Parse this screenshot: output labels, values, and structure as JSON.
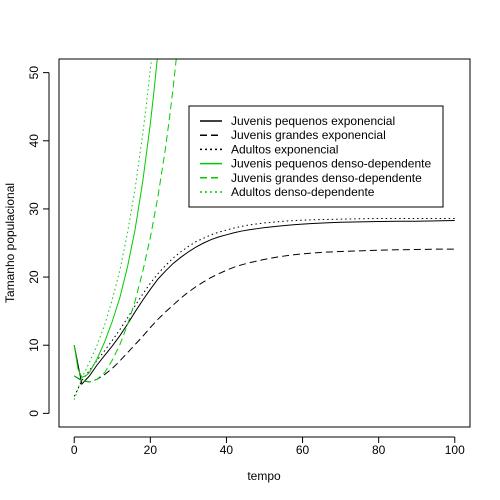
{
  "chart_data": {
    "type": "line",
    "title": "",
    "xlabel": "tempo",
    "ylabel": "Tamanho populacional",
    "xlim": [
      -4,
      104
    ],
    "ylim": [
      -2,
      52
    ],
    "x_ticks": [
      0,
      20,
      40,
      60,
      80,
      100
    ],
    "y_ticks": [
      0,
      10,
      20,
      30,
      40,
      50
    ],
    "grid": false,
    "legend_position": "top-right",
    "colors": {
      "black": "#000000",
      "green": "#00cc00"
    },
    "series": [
      {
        "name": "Juvenis pequenos exponencial",
        "color": "#000000",
        "dash": "solid",
        "x": [
          0,
          2,
          4,
          6,
          8,
          10,
          12,
          14,
          16,
          18,
          20,
          22,
          24,
          26,
          28,
          30,
          32,
          34,
          36,
          38,
          40,
          42,
          44,
          46,
          48,
          50,
          54,
          58,
          62,
          66,
          70,
          75,
          80,
          85,
          90,
          95,
          100
        ],
        "y": [
          10,
          4.3,
          5.5,
          7.1,
          8.5,
          9.9,
          11.4,
          13.1,
          14.9,
          16.6,
          18.2,
          19.7,
          20.9,
          22.0,
          22.9,
          23.7,
          24.4,
          25.0,
          25.5,
          25.9,
          26.2,
          26.5,
          26.75,
          26.95,
          27.1,
          27.25,
          27.5,
          27.7,
          27.85,
          27.95,
          28.05,
          28.1,
          28.15,
          28.2,
          28.2,
          28.25,
          28.3
        ]
      },
      {
        "name": "Juvenis grandes exponencial",
        "color": "#000000",
        "dash": "dashed",
        "x": [
          0,
          2,
          4,
          6,
          8,
          10,
          12,
          14,
          16,
          18,
          20,
          22,
          24,
          26,
          28,
          30,
          32,
          34,
          36,
          38,
          40,
          42,
          44,
          46,
          48,
          50,
          54,
          58,
          62,
          66,
          70,
          75,
          80,
          85,
          90,
          95,
          100
        ],
        "y": [
          5.5,
          4.8,
          4.6,
          5.0,
          5.7,
          6.6,
          7.7,
          8.9,
          10.1,
          11.3,
          12.6,
          13.8,
          14.9,
          15.9,
          16.9,
          17.8,
          18.6,
          19.3,
          19.95,
          20.5,
          21.0,
          21.45,
          21.8,
          22.1,
          22.35,
          22.6,
          23.0,
          23.3,
          23.5,
          23.65,
          23.75,
          23.85,
          23.95,
          24.0,
          24.05,
          24.1,
          24.1
        ]
      },
      {
        "name": "Adultos exponencial",
        "color": "#000000",
        "dash": "dotted",
        "x": [
          0,
          2,
          4,
          6,
          8,
          10,
          12,
          14,
          16,
          18,
          20,
          22,
          24,
          26,
          28,
          30,
          32,
          34,
          36,
          38,
          40,
          42,
          44,
          46,
          48,
          50,
          54,
          58,
          62,
          66,
          70,
          75,
          80,
          85,
          90,
          95,
          100
        ],
        "y": [
          2.5,
          4.8,
          6.3,
          7.8,
          9.2,
          10.7,
          12.3,
          14.0,
          15.8,
          17.5,
          19.1,
          20.5,
          21.7,
          22.8,
          23.7,
          24.5,
          25.2,
          25.7,
          26.2,
          26.6,
          26.9,
          27.2,
          27.45,
          27.65,
          27.8,
          27.95,
          28.15,
          28.3,
          28.4,
          28.45,
          28.5,
          28.55,
          28.6,
          28.6,
          28.6,
          28.6,
          28.6
        ]
      },
      {
        "name": "Juvenis pequenos denso-dependente",
        "color": "#00cc00",
        "dash": "solid",
        "x": [
          0,
          1,
          2,
          3,
          4,
          6,
          8,
          10,
          12,
          14,
          16,
          18,
          20,
          21,
          22
        ],
        "y": [
          10,
          6.5,
          5.3,
          5.5,
          6.0,
          8.0,
          10.5,
          13.5,
          17.0,
          21.5,
          27.0,
          34.0,
          42.5,
          47.5,
          53.0
        ]
      },
      {
        "name": "Juvenis grandes denso-dependente",
        "color": "#00cc00",
        "dash": "dashed",
        "x": [
          0,
          2,
          4,
          6,
          8,
          10,
          12,
          14,
          16,
          18,
          20,
          22,
          24,
          25,
          26,
          27
        ],
        "y": [
          5.5,
          4.9,
          4.6,
          5.0,
          6.0,
          7.8,
          10.1,
          13.0,
          16.5,
          20.8,
          25.8,
          31.8,
          39.0,
          43.2,
          47.8,
          53.0
        ]
      },
      {
        "name": "Adultos denso-dependente",
        "color": "#00cc00",
        "dash": "dotted",
        "x": [
          0,
          2,
          4,
          6,
          8,
          10,
          12,
          14,
          16,
          18,
          19,
          20,
          21
        ],
        "y": [
          2.0,
          5.2,
          7.5,
          10.0,
          13.0,
          16.7,
          21.0,
          26.5,
          33.0,
          41.0,
          45.5,
          50.5,
          55.5
        ]
      }
    ]
  }
}
